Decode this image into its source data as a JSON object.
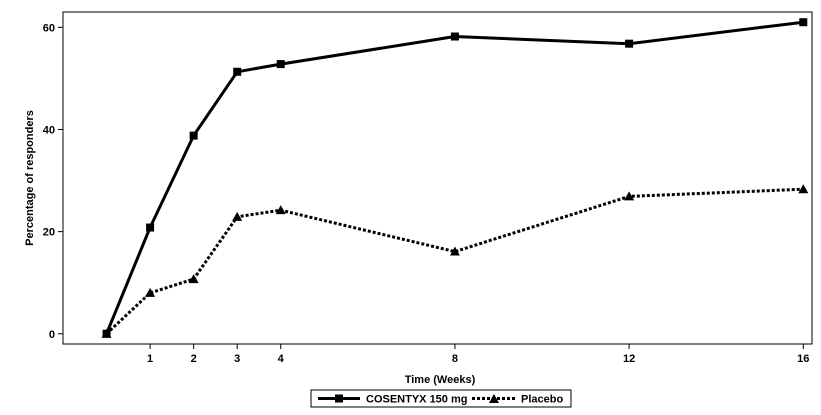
{
  "chart_data": {
    "type": "line",
    "title": "",
    "xlabel": "Time (Weeks)",
    "ylabel": "Percentage of responders",
    "x": [
      0,
      1,
      2,
      3,
      4,
      8,
      12,
      16
    ],
    "xticks": [
      1,
      2,
      3,
      4,
      8,
      12,
      16
    ],
    "yticks": [
      0,
      20,
      40,
      60
    ],
    "xlim": [
      -1,
      16.2
    ],
    "ylim": [
      -2,
      63
    ],
    "grid": false,
    "legend_position": "bottom-center",
    "series": [
      {
        "name": "COSENTYX 150 mg",
        "values": [
          0,
          20.8,
          38.8,
          51.3,
          52.8,
          58.2,
          56.8,
          61.0
        ],
        "marker": "square",
        "line_style": "solid",
        "color": "#000000"
      },
      {
        "name": "Placebo",
        "values": [
          0,
          8.0,
          10.7,
          22.9,
          24.2,
          16.1,
          26.9,
          28.3
        ],
        "marker": "triangle",
        "line_style": "dotted",
        "color": "#000000"
      }
    ]
  }
}
